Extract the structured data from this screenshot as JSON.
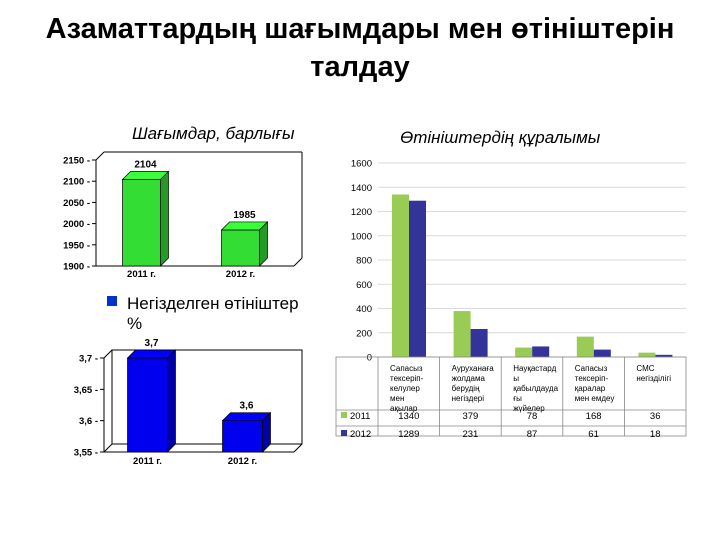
{
  "slide": {
    "title_line1": "Азаматтардың шағымдары мен өтініштерін",
    "title_line2": "талдау",
    "left_top_subtitle": "Шағымдар, барлығы",
    "left_bottom_legend": "Негізделген өтініштер %",
    "right_subtitle": "Өтініштердің құралымы"
  },
  "colors": {
    "green": "#33dd33",
    "blue": "#0000ee",
    "legend_blue": "#0033cc",
    "right_green": "#99cc55",
    "right_navy": "#333399"
  },
  "chart_data": [
    {
      "type": "bar",
      "title": "Шағымдар, барлығы",
      "categories": [
        "2011 г.",
        "2012 г."
      ],
      "values": [
        2104,
        1985
      ],
      "data_labels": [
        "2104",
        "1985"
      ],
      "ylim": [
        1900,
        2150
      ],
      "yticks": [
        "1900",
        "1950",
        "2000",
        "2050",
        "2100",
        "2150"
      ],
      "style": "3d",
      "color": "#33dd33"
    },
    {
      "type": "bar",
      "title": "Негізделген өтініштер %",
      "categories": [
        "2011 г.",
        "2012 г."
      ],
      "values": [
        3.7,
        3.6
      ],
      "data_labels": [
        "3,7",
        "3,6"
      ],
      "ylim": [
        3.55,
        3.7
      ],
      "yticks": [
        "3,55",
        "3,6",
        "3,65",
        "3,7"
      ],
      "style": "3d",
      "color": "#0000ee"
    },
    {
      "type": "bar",
      "title": "Өтініштердің құралымы",
      "categories": [
        "Сапасыз тексеріп-келулер мен ақылар",
        "Ауруханаға жолдама берудің негіздері",
        "Науқастарды қабылдаудағы жүйелердің кемшілігі",
        "Сапасыз тексеріп-қаралар мен емдеу",
        "СМС негізділігі"
      ],
      "category_display": [
        [
          "Сапасыз",
          "тексеріп-",
          "келулер",
          "мен",
          "ақылар"
        ],
        [
          "Ауруханаға",
          "жолдама",
          "берудің",
          "негіздері"
        ],
        [
          "Науқастард",
          "ы",
          "қабылдауда",
          "ғы",
          "жүйелер"
        ],
        [
          "Сапасыз",
          "тексеріп-",
          "қаралар",
          "мен емдеу"
        ],
        [
          "СМС",
          "негізділігі"
        ]
      ],
      "series": [
        {
          "name": "2011",
          "values": [
            1340,
            379,
            78,
            168,
            36
          ],
          "labels": [
            "1340",
            "379",
            "78",
            "168",
            "36"
          ]
        },
        {
          "name": "2012",
          "values": [
            1289,
            231,
            87,
            61,
            18
          ],
          "labels": [
            "1289",
            "231",
            "87",
            "61",
            "18"
          ]
        }
      ],
      "ylim": [
        0,
        1600
      ],
      "yticks": [
        "0",
        "200",
        "400",
        "600",
        "800",
        "1000",
        "1200",
        "1400",
        "1600"
      ],
      "grid": true,
      "legend": "data-table"
    }
  ]
}
